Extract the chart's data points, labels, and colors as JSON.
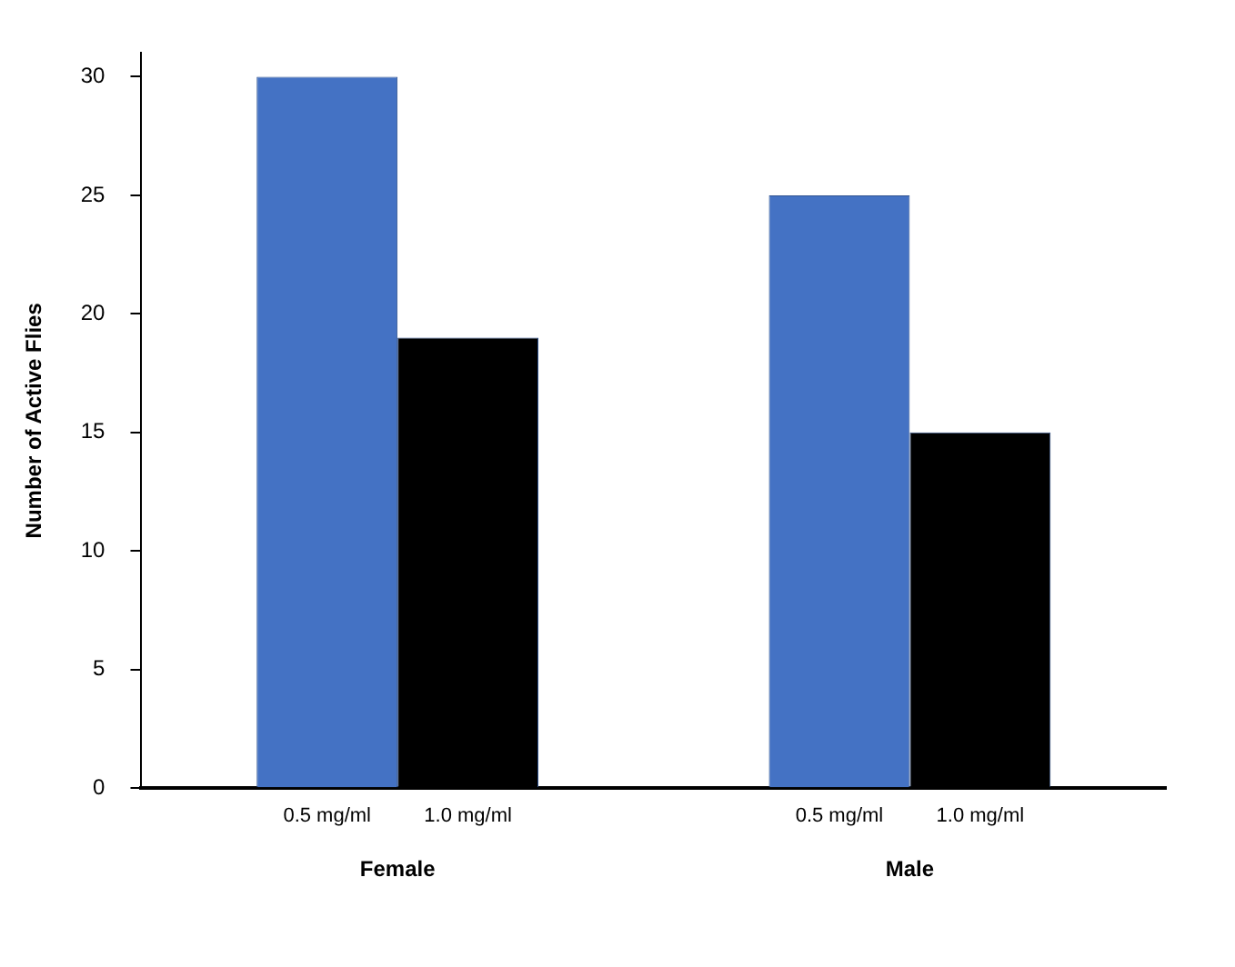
{
  "chart_data": {
    "type": "bar",
    "ylabel": "Number of Active Flies",
    "categories": [
      "Female",
      "Male"
    ],
    "series": [
      {
        "name": "0.5 mg/ml",
        "color": "#4472c4",
        "values": [
          30,
          25
        ]
      },
      {
        "name": "1.0 mg/ml",
        "color": "#000000",
        "values": [
          19,
          15
        ]
      }
    ],
    "ylim": [
      0,
      31
    ],
    "yticks": [
      0,
      5,
      10,
      15,
      20,
      25,
      30
    ],
    "grid": false,
    "legend": false
  }
}
